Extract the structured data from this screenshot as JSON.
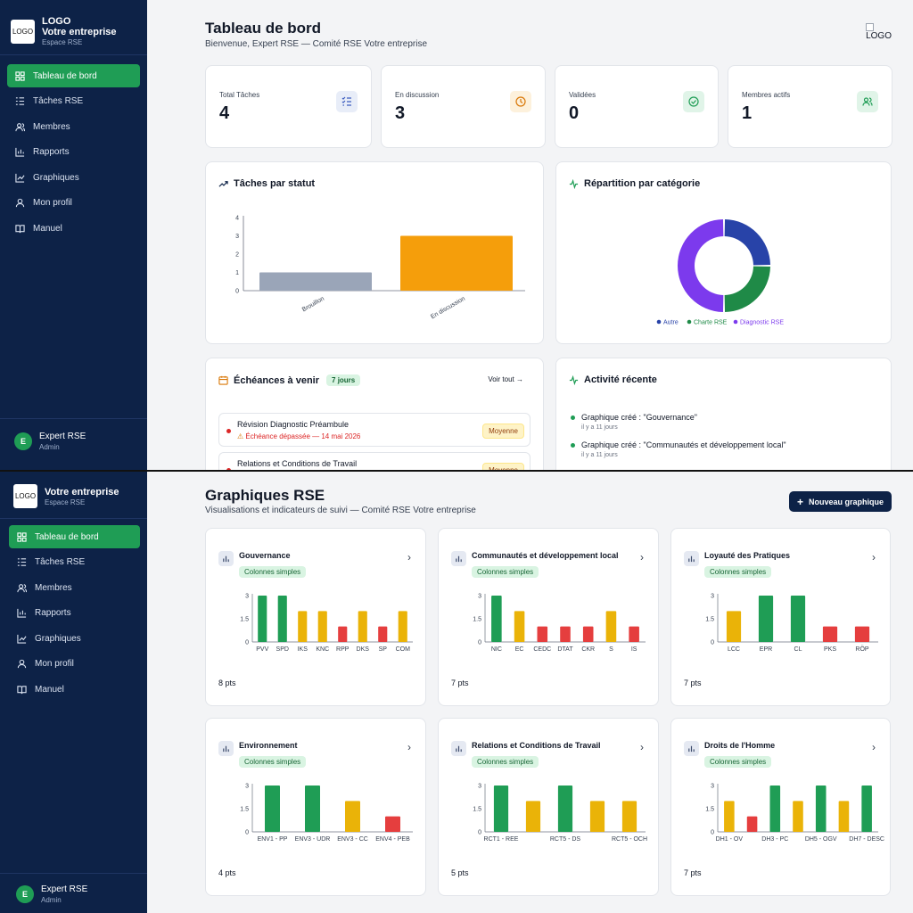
{
  "sidebar": {
    "logo_text": "LOGO",
    "logo_word": "LOGO",
    "org_name": "Votre entreprise",
    "org_sub": "Espace RSE",
    "items": [
      {
        "label": "Tableau de bord",
        "icon": "dashboard-icon"
      },
      {
        "label": "Tâches RSE",
        "icon": "tasks-icon"
      },
      {
        "label": "Membres",
        "icon": "members-icon"
      },
      {
        "label": "Rapports",
        "icon": "reports-icon"
      },
      {
        "label": "Graphiques",
        "icon": "charts-icon"
      },
      {
        "label": "Mon profil",
        "icon": "profile-icon"
      },
      {
        "label": "Manuel",
        "icon": "book-icon"
      }
    ],
    "user": {
      "initial": "E",
      "name": "Expert RSE",
      "role": "Admin"
    }
  },
  "dashboard": {
    "title": "Tableau de bord",
    "subtitle": "Bienvenue, Expert RSE — Comité RSE Votre entreprise",
    "corner_logo": "LOGO",
    "stats": [
      {
        "label": "Total Tâches",
        "value": "4",
        "icon": "list-check-icon",
        "color": "#3b5bbf",
        "bg": "#e8edf8"
      },
      {
        "label": "En discussion",
        "value": "3",
        "icon": "clock-icon",
        "color": "#d97706",
        "bg": "#fdf1dc"
      },
      {
        "label": "Validées",
        "value": "0",
        "icon": "check-circle-icon",
        "color": "#1f9d55",
        "bg": "#e0f4e8"
      },
      {
        "label": "Membres actifs",
        "value": "1",
        "icon": "users-icon",
        "color": "#1f9d55",
        "bg": "#e0f4e8"
      }
    ],
    "status_chart_title": "Tâches par statut",
    "category_chart_title": "Répartition par catégorie",
    "deadlines": {
      "title": "Échéances à venir",
      "badge": "7 jours",
      "see_all": "Voir tout",
      "items": [
        {
          "title": "Révision Diagnostic Préambule",
          "warning": "Échéance dépassée — 14 mai 2026",
          "priority": "Moyenne"
        },
        {
          "title": "Relations et Conditions de Travail",
          "warning": "",
          "priority": "Moyenne"
        }
      ]
    },
    "activity": {
      "title": "Activité récente",
      "items": [
        {
          "text": "Graphique créé : \"Gouvernance\"",
          "time": "il y a 11 jours"
        },
        {
          "text": "Graphique créé : \"Communautés et développement local\"",
          "time": "il y a 11 jours"
        }
      ]
    }
  },
  "charts_page": {
    "title": "Graphiques RSE",
    "subtitle": "Visualisations et indicateurs de suivi — Comité RSE Votre entreprise",
    "new_button": "Nouveau graphique",
    "badge": "Colonnes simples"
  },
  "chart_data": [
    {
      "id": "status",
      "type": "bar",
      "title": "Tâches par statut",
      "categories": [
        "Brouillon",
        "En discussion"
      ],
      "values": [
        1,
        3
      ],
      "colors": [
        "#9aa5b8",
        "#f59e0b"
      ],
      "ylim": [
        0,
        4
      ],
      "yticks": [
        "0",
        "1",
        "2",
        "3",
        "4"
      ]
    },
    {
      "id": "category",
      "type": "pie",
      "title": "Répartition par catégorie",
      "labels": [
        "Autre",
        "Charte RSE",
        "Diagnostic RSE"
      ],
      "values": [
        1,
        1,
        2
      ],
      "colors": [
        "#2843a8",
        "#1f8a47",
        "#7c3aed"
      ]
    },
    {
      "id": "gouvernance",
      "type": "bar",
      "title": "Gouvernance",
      "pts": "8 pts",
      "categories": [
        "PVV",
        "SPD",
        "IKS",
        "KNC",
        "RPP",
        "DKS",
        "SP",
        "COM"
      ],
      "values": [
        3,
        3,
        2,
        2,
        1,
        2,
        1,
        2
      ],
      "yticks": [
        "0",
        "1.5",
        "3"
      ],
      "ylim": [
        0,
        3
      ]
    },
    {
      "id": "communautes",
      "type": "bar",
      "title": "Communautés et développement local",
      "pts": "7 pts",
      "categories": [
        "NIC",
        "EC",
        "CEDC",
        "DTAT",
        "CKR",
        "S",
        "IS"
      ],
      "values": [
        3,
        2,
        1,
        1,
        1,
        2,
        1
      ],
      "yticks": [
        "0",
        "1.5",
        "3"
      ],
      "ylim": [
        0,
        3
      ]
    },
    {
      "id": "loyaute",
      "type": "bar",
      "title": "Loyauté des Pratiques",
      "pts": "7 pts",
      "categories": [
        "LCC",
        "EPR",
        "CL",
        "PKS",
        "RÖP"
      ],
      "values": [
        2,
        3,
        3,
        1,
        1
      ],
      "yticks": [
        "0",
        "1.5",
        "3"
      ],
      "ylim": [
        0,
        3
      ]
    },
    {
      "id": "environnement",
      "type": "bar",
      "title": "Environnement",
      "pts": "4 pts",
      "categories": [
        "ENV1 - PP",
        "ENV3 - UDR",
        "ENV3 - CC",
        "ENV4 - PEB"
      ],
      "values": [
        3,
        3,
        2,
        1
      ],
      "yticks": [
        "0",
        "1.5",
        "3"
      ],
      "ylim": [
        0,
        3
      ]
    },
    {
      "id": "relations",
      "type": "bar",
      "title": "Relations et Conditions de Travail",
      "pts": "5 pts",
      "categories": [
        "RCT1 - REE",
        "",
        "RCT5 - DS",
        "",
        "RCT5 - OCH"
      ],
      "values": [
        3,
        2,
        3,
        2,
        2
      ],
      "yticks": [
        "0",
        "1.5",
        "3"
      ],
      "ylim": [
        0,
        3
      ]
    },
    {
      "id": "droits",
      "type": "bar",
      "title": "Droits de l'Homme",
      "pts": "7 pts",
      "categories": [
        "DH1 - OV",
        "",
        "DH3 - PC",
        "",
        "DH5 - OGV",
        "",
        "DH7 - DESC"
      ],
      "values": [
        2,
        1,
        3,
        2,
        3,
        2,
        3
      ],
      "yticks": [
        "0",
        "1.5",
        "3"
      ],
      "ylim": [
        0,
        3
      ]
    }
  ],
  "colors": {
    "level_3": "#1f9d55",
    "level_2": "#eab308",
    "level_1": "#e53e3e",
    "accent": "#1f9d55",
    "navy": "#0d2247"
  }
}
